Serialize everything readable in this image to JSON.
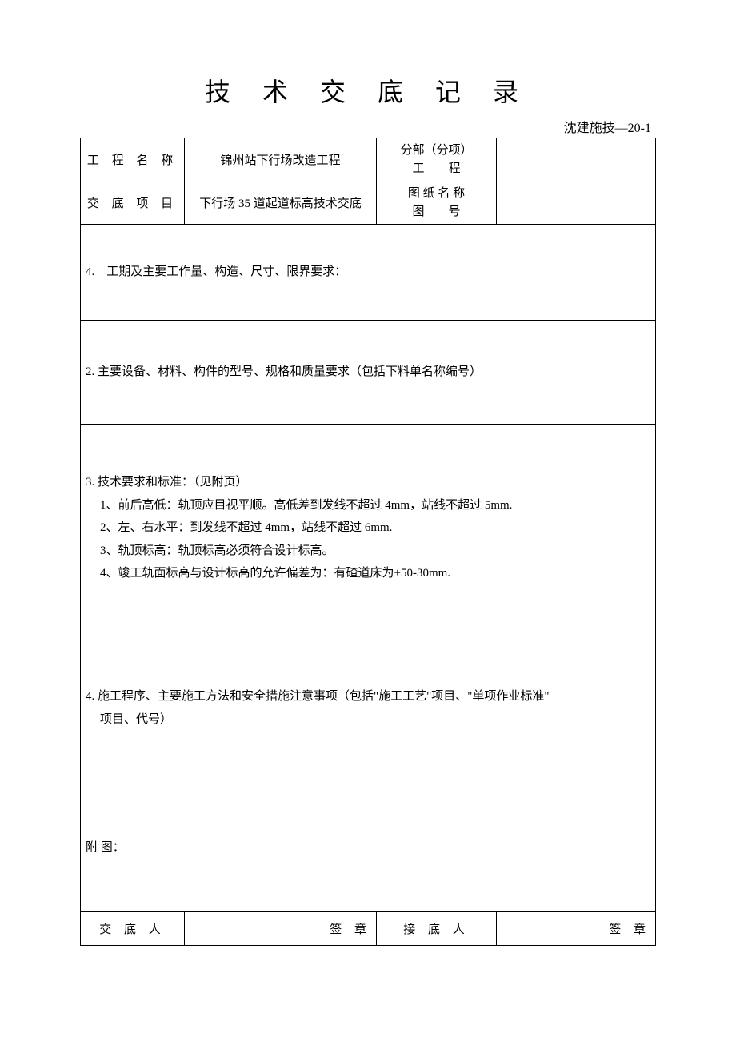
{
  "doc": {
    "title": "技 术 交 底 记 录",
    "form_code": "沈建施技—20-1"
  },
  "header": {
    "project_name_label": "工 程 名 称",
    "project_name_value": "锦州站下行场改造工程",
    "subsection_label_line1": "分部（分项）",
    "subsection_label_line2": "工　　程",
    "subsection_value": "",
    "item_label": "交 底 项 目",
    "item_value": "下行场 35 道起道标高技术交底",
    "drawing_label_line1": "图 纸 名 称",
    "drawing_label_line2": "图　　号",
    "drawing_value": ""
  },
  "sections": {
    "s1_title": "4.　工期及主要工作量、构造、尺寸、限界要求：",
    "s2_title": "2. 主要设备、材料、构件的型号、规格和质量要求（包括下料单名称编号）",
    "s3_title": "3. 技术要求和标准：（见附页）",
    "s3_items": [
      "1、前后高低：轨顶应目视平顺。高低差到发线不超过 4mm，站线不超过 5mm.",
      "2、左、右水平：到发线不超过 4mm，站线不超过 6mm.",
      "3、轨顶标高：轨顶标高必须符合设计标高。",
      "4、竣工轨面标高与设计标高的允许偏差为：有碴道床为+50-30mm."
    ],
    "s4_title": "4. 施工程序、主要施工方法和安全措施注意事项（包括\"施工工艺\"项目、\"单项作业标准\"",
    "s4_title2": "项目、代号）",
    "s5_title": "附 图："
  },
  "footer": {
    "submitter_label": "交 底 人",
    "receiver_label": "接 底 人",
    "signature_label": "签 章"
  },
  "style": {
    "text_color": "#000000",
    "background": "#ffffff",
    "border_color": "#000000"
  }
}
